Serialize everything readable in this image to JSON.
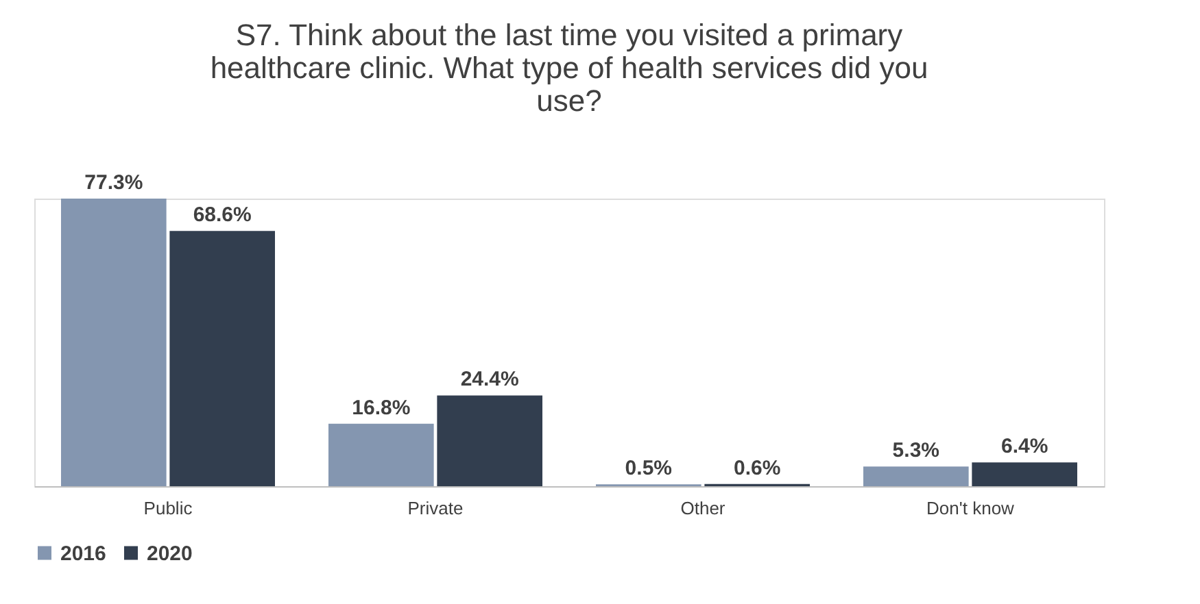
{
  "chart_data": {
    "type": "bar",
    "title": [
      "S7. Think about the last time you visited a primary",
      "healthcare clinic. What type of health services did you",
      "use?"
    ],
    "categories": [
      "Public",
      "Private",
      "Other",
      "Don't know"
    ],
    "series": [
      {
        "name": "2016",
        "color": "#8496b0",
        "values": [
          77.3,
          16.8,
          0.5,
          5.3
        ],
        "value_labels": [
          "77.3%",
          "16.8%",
          "0.5%",
          "5.3%"
        ]
      },
      {
        "name": "2020",
        "color": "#323e4f",
        "values": [
          68.6,
          24.4,
          0.6,
          6.4
        ],
        "value_labels": [
          "68.6%",
          "24.4%",
          "0.6%",
          "6.4%"
        ]
      }
    ],
    "legend": "bottom",
    "grid": false
  }
}
